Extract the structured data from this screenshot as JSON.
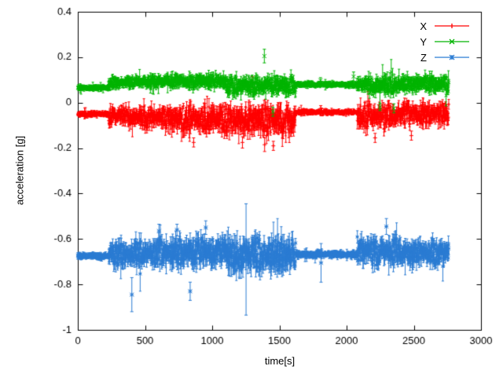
{
  "chart_data": {
    "type": "scatter",
    "plot_style": "errorbars",
    "title": "",
    "xlabel": "time[s]",
    "ylabel": "acceleration [g]",
    "xlim": [
      0,
      3000
    ],
    "ylim": [
      -1,
      0.4
    ],
    "xticks": [
      0,
      500,
      1000,
      1500,
      2000,
      2500,
      3000
    ],
    "yticks": [
      -1,
      -0.8,
      -0.6,
      -0.4,
      -0.2,
      0,
      0.2,
      0.4
    ],
    "grid": false,
    "legend_position": "top-right",
    "background_color": "#ffffff",
    "axis_color": "#000000",
    "sample_interval_s": 2,
    "prng_seed": 7,
    "segment_fields": [
      "t_start",
      "t_end",
      "mean",
      "noise_amp",
      "err_amp"
    ],
    "spike_fields": [
      "t",
      "value",
      "err"
    ],
    "series": [
      {
        "name": "X",
        "color": "#ff0000",
        "marker": "plus",
        "segments": [
          [
            0,
            230,
            -0.05,
            0.01,
            0.008
          ],
          [
            230,
            430,
            -0.058,
            0.045,
            0.02
          ],
          [
            430,
            700,
            -0.062,
            0.055,
            0.025
          ],
          [
            700,
            1100,
            -0.068,
            0.07,
            0.028
          ],
          [
            1100,
            1620,
            -0.075,
            0.08,
            0.032
          ],
          [
            1620,
            2080,
            -0.042,
            0.01,
            0.008
          ],
          [
            2080,
            2400,
            -0.058,
            0.065,
            0.026
          ],
          [
            2400,
            2760,
            -0.05,
            0.06,
            0.024
          ]
        ],
        "spikes": [
          [
            862,
            -0.175,
            0.02
          ],
          [
            1225,
            -0.175,
            0.025
          ],
          [
            1298,
            0.09,
            0.025
          ],
          [
            1390,
            -0.185,
            0.03
          ],
          [
            1455,
            -0.19,
            0.02
          ],
          [
            1808,
            -0.025,
            0.012
          ],
          [
            2212,
            -0.155,
            0.02
          ],
          [
            2482,
            -0.145,
            0.02
          ]
        ]
      },
      {
        "name": "Y",
        "color": "#00b400",
        "marker": "cross",
        "segments": [
          [
            0,
            230,
            0.065,
            0.01,
            0.008
          ],
          [
            230,
            430,
            0.088,
            0.028,
            0.014
          ],
          [
            430,
            700,
            0.092,
            0.03,
            0.015
          ],
          [
            700,
            1100,
            0.095,
            0.035,
            0.016
          ],
          [
            1100,
            1620,
            0.075,
            0.05,
            0.02
          ],
          [
            1620,
            2080,
            0.08,
            0.01,
            0.008
          ],
          [
            2080,
            2400,
            0.078,
            0.048,
            0.02
          ],
          [
            2400,
            2760,
            0.085,
            0.045,
            0.018
          ]
        ],
        "spikes": [
          [
            1388,
            0.205,
            0.03
          ],
          [
            1452,
            -0.04,
            0.02
          ],
          [
            1806,
            0.098,
            0.012
          ],
          [
            2052,
            0.115,
            0.02
          ],
          [
            2248,
            -0.02,
            0.015
          ],
          [
            2352,
            -0.025,
            0.02
          ]
        ]
      },
      {
        "name": "Z",
        "color": "#2b7cd3",
        "marker": "star",
        "segments": [
          [
            0,
            230,
            -0.675,
            0.012,
            0.01
          ],
          [
            230,
            430,
            -0.668,
            0.055,
            0.03
          ],
          [
            430,
            700,
            -0.662,
            0.065,
            0.032
          ],
          [
            700,
            1100,
            -0.655,
            0.075,
            0.035
          ],
          [
            1100,
            1620,
            -0.668,
            0.085,
            0.04
          ],
          [
            1620,
            2080,
            -0.668,
            0.014,
            0.01
          ],
          [
            2080,
            2400,
            -0.652,
            0.07,
            0.03
          ],
          [
            2400,
            2760,
            -0.66,
            0.065,
            0.028
          ]
        ],
        "spikes": [
          [
            402,
            -0.845,
            0.075
          ],
          [
            604,
            -0.565,
            0.03
          ],
          [
            738,
            -0.56,
            0.025
          ],
          [
            836,
            -0.83,
            0.04
          ],
          [
            952,
            -0.55,
            0.03
          ],
          [
            1252,
            -0.69,
            0.245
          ],
          [
            1810,
            -0.705,
            0.085
          ],
          [
            2296,
            -0.545,
            0.035
          ]
        ]
      }
    ]
  }
}
